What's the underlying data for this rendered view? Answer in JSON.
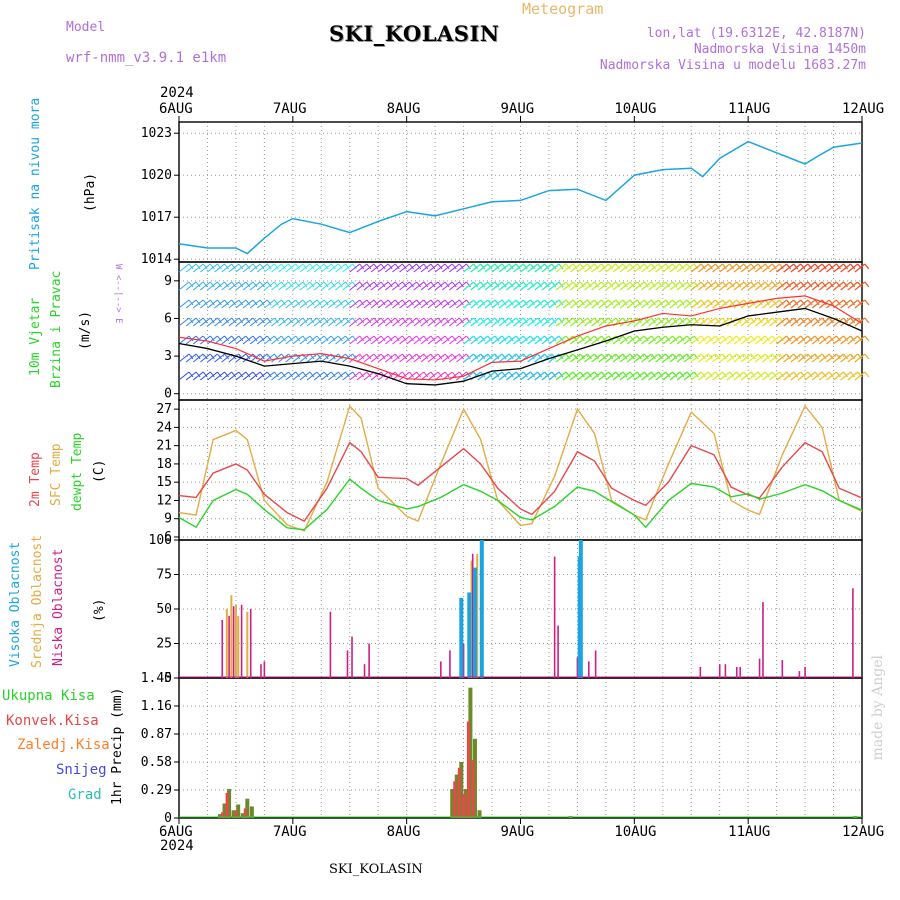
{
  "header": {
    "model_label": "Model",
    "model_name": "wrf-nmm_v3.9.1 e1km",
    "meteogram": "Meteogram",
    "station": "SKI_KOLASIN",
    "lonlat": "lon,lat (19.6312E, 42.8187N)",
    "altitude": "Nadmorska Visina 1450m",
    "model_altitude": "Nadmorska Visina u modelu 1683.27m"
  },
  "footer": {
    "station": "SKI_KOLASIN",
    "credit": "made by Angel"
  },
  "axis": {
    "year": "2024",
    "days": [
      "6AUG",
      "7AUG",
      "8AUG",
      "9AUG",
      "10AUG",
      "11AUG",
      "12AUG"
    ]
  },
  "colors": {
    "pressure": "#1aa5e0",
    "t2m": "#e8484a",
    "sfc": "#e3ac44",
    "dew": "#2ad42a",
    "high": "#1aa5e0",
    "mid": "#e3ac44",
    "low": "#cc1f88",
    "total": "#2ad42a",
    "conv": "#e8484a",
    "frz": "#ff7f27",
    "snow": "#4848e0",
    "grad": "#2abfb0"
  },
  "panels": {
    "pressure": {
      "labels": [
        "Pritisak na nivou mora",
        "(hPa)"
      ]
    },
    "wind": {
      "labels": [
        "10m Vjetar",
        "Brzina i Pravac",
        "(m/s)"
      ],
      "compass": "W <--|--> E"
    },
    "temp": {
      "labels": [
        "2m Temp",
        "SFC Temp",
        "dewpt Temp",
        "(C)"
      ]
    },
    "cloud": {
      "labels": [
        "Visoka Oblacnost",
        "Srednja Oblacnost",
        "Niska Oblacnost",
        "(%)"
      ]
    },
    "precip": {
      "labels": [
        "1hr Precip (mm)"
      ],
      "legend": [
        "Ukupna Kisa",
        "Konvek.Kisa",
        "Zaledj.Kisa",
        "Snijeg",
        "Grad"
      ]
    }
  },
  "chart_data": [
    {
      "type": "line",
      "title": "",
      "ylabel": "Pritisak na nivou mora (hPa)",
      "ylim": [
        1013.8,
        1023.8
      ],
      "yticks": [
        1014,
        1017,
        1020,
        1023
      ],
      "x_unit": "days since 6AUG 00",
      "series": [
        {
          "name": "Pritisak na nivou mora",
          "x": [
            0,
            0.25,
            0.5,
            0.6,
            0.75,
            0.9,
            1.0,
            1.25,
            1.5,
            1.75,
            2.0,
            2.25,
            2.5,
            2.75,
            3.0,
            3.25,
            3.5,
            3.75,
            4.0,
            4.25,
            4.5,
            4.6,
            4.75,
            5.0,
            5.25,
            5.5,
            5.6,
            5.75,
            6.0
          ],
          "y": [
            1015.1,
            1014.8,
            1014.8,
            1014.4,
            1015.5,
            1016.5,
            1016.9,
            1016.5,
            1015.9,
            1016.7,
            1017.4,
            1017.1,
            1017.6,
            1018.1,
            1018.2,
            1018.9,
            1019.0,
            1018.2,
            1020.0,
            1020.4,
            1020.5,
            1019.9,
            1021.2,
            1022.4,
            1021.6,
            1020.8,
            1021.3,
            1022.0,
            1022.3
          ]
        }
      ]
    },
    {
      "type": "line",
      "title": "",
      "ylabel": "10m Vjetar Brzina i Pravac (m/s)",
      "ylim": [
        -0.5,
        10.5
      ],
      "yticks": [
        0,
        3,
        6,
        9
      ],
      "x_unit": "days since 6AUG 00",
      "series": [
        {
          "name": "speed",
          "x": [
            0,
            0.25,
            0.5,
            0.75,
            1.0,
            1.25,
            1.5,
            1.75,
            2.0,
            2.25,
            2.5,
            2.75,
            3.0,
            3.25,
            3.5,
            3.75,
            4.0,
            4.25,
            4.5,
            4.75,
            5.0,
            5.25,
            5.5,
            5.75,
            6.0
          ],
          "y": [
            4.0,
            3.6,
            3.0,
            2.2,
            2.4,
            2.6,
            2.2,
            1.6,
            0.8,
            0.7,
            1.0,
            1.8,
            2.0,
            2.8,
            3.5,
            4.2,
            5.0,
            5.3,
            5.5,
            5.4,
            6.2,
            6.5,
            6.8,
            6.0,
            5.0
          ]
        },
        {
          "name": "gust",
          "x": [
            0,
            0.25,
            0.5,
            0.75,
            1.0,
            1.25,
            1.5,
            1.75,
            2.0,
            2.25,
            2.5,
            2.75,
            3.0,
            3.25,
            3.5,
            3.75,
            4.0,
            4.25,
            4.5,
            4.75,
            5.0,
            5.25,
            5.5,
            5.75,
            6.0
          ],
          "y": [
            4.5,
            4.2,
            3.6,
            2.6,
            3.0,
            3.2,
            2.8,
            2.0,
            1.2,
            1.1,
            1.4,
            2.5,
            2.6,
            3.6,
            4.6,
            5.4,
            5.8,
            6.4,
            6.2,
            6.8,
            7.2,
            7.6,
            7.8,
            7.0,
            5.6
          ]
        }
      ]
    },
    {
      "type": "line",
      "title": "",
      "ylabel": "Temp (C)",
      "ylim": [
        5.5,
        28.5
      ],
      "yticks": [
        6,
        9,
        12,
        15,
        18,
        21,
        24,
        27
      ],
      "x_unit": "days since 6AUG 00",
      "series": [
        {
          "name": "2m Temp",
          "x": [
            0,
            0.15,
            0.3,
            0.5,
            0.6,
            0.75,
            0.95,
            1.1,
            1.3,
            1.5,
            1.6,
            1.75,
            2.0,
            2.1,
            2.3,
            2.5,
            2.65,
            2.8,
            3.0,
            3.1,
            3.3,
            3.5,
            3.65,
            3.8,
            4.0,
            4.1,
            4.3,
            4.5,
            4.7,
            4.85,
            5.0,
            5.1,
            5.3,
            5.5,
            5.65,
            5.8,
            6.0
          ],
          "y": [
            12.8,
            12.5,
            16.5,
            18.0,
            17.0,
            13.0,
            10.0,
            8.6,
            14.0,
            21.5,
            20.0,
            15.8,
            15.6,
            14.5,
            17.5,
            20.5,
            18.0,
            14.0,
            10.6,
            9.7,
            13.5,
            20.0,
            18.5,
            14.0,
            12.0,
            11.2,
            15.0,
            21.0,
            19.5,
            14.2,
            12.9,
            12.4,
            17.5,
            21.5,
            20.0,
            14.0,
            12.4
          ]
        },
        {
          "name": "SFC Temp",
          "x": [
            0,
            0.15,
            0.3,
            0.5,
            0.6,
            0.75,
            0.95,
            1.1,
            1.3,
            1.5,
            1.6,
            1.75,
            2.0,
            2.1,
            2.3,
            2.5,
            2.65,
            2.8,
            3.0,
            3.1,
            3.3,
            3.5,
            3.65,
            3.8,
            4.0,
            4.1,
            4.3,
            4.5,
            4.7,
            4.85,
            5.0,
            5.1,
            5.3,
            5.5,
            5.65,
            5.8,
            6.0
          ],
          "y": [
            10.0,
            9.6,
            22.0,
            23.5,
            22.0,
            12.0,
            8.0,
            7.0,
            15.0,
            27.5,
            25.5,
            14.0,
            9.4,
            8.6,
            18.0,
            27.0,
            22.0,
            12.0,
            7.9,
            8.2,
            16.0,
            27.0,
            23.0,
            12.0,
            9.6,
            8.8,
            18.0,
            26.5,
            23.0,
            12.0,
            10.4,
            9.7,
            19.5,
            27.5,
            24.0,
            12.0,
            10.2
          ]
        },
        {
          "name": "dewpt Temp",
          "x": [
            0,
            0.15,
            0.3,
            0.5,
            0.6,
            0.75,
            0.95,
            1.1,
            1.3,
            1.5,
            1.6,
            1.75,
            2.0,
            2.1,
            2.3,
            2.5,
            2.65,
            2.8,
            3.0,
            3.1,
            3.3,
            3.5,
            3.65,
            3.8,
            4.0,
            4.1,
            4.3,
            4.5,
            4.7,
            4.85,
            5.0,
            5.1,
            5.3,
            5.5,
            5.65,
            5.8,
            6.0
          ],
          "y": [
            9.2,
            7.6,
            12.0,
            13.8,
            13.0,
            10.5,
            7.5,
            7.2,
            10.5,
            15.5,
            14.0,
            12.0,
            10.6,
            11.0,
            12.5,
            14.6,
            13.5,
            12.0,
            9.2,
            8.8,
            11.0,
            14.2,
            13.5,
            11.8,
            9.6,
            7.6,
            12.0,
            14.8,
            14.2,
            12.6,
            13.1,
            12.2,
            13.2,
            14.6,
            13.6,
            12.0,
            10.4
          ]
        }
      ]
    },
    {
      "type": "bar",
      "title": "",
      "ylabel": "Oblacnost (%)",
      "ylim": [
        0,
        100
      ],
      "yticks": [
        0,
        25,
        50,
        75,
        100
      ],
      "x_unit": "days since 6AUG 00",
      "series": [
        {
          "name": "Visoka Oblacnost",
          "x": [
            2.48,
            2.55,
            2.6,
            2.66,
            3.52,
            3.53
          ],
          "y": [
            58,
            62,
            80,
            100,
            88,
            100
          ]
        },
        {
          "name": "Srednja Oblacnost",
          "x": [
            0.42,
            0.46,
            0.5,
            0.52,
            0.6,
            2.57,
            2.62
          ],
          "y": [
            50,
            60,
            53,
            45,
            48,
            85,
            90
          ]
        },
        {
          "name": "Niska Oblacnost",
          "x": [
            0.38,
            0.44,
            0.48,
            0.55,
            0.63,
            0.72,
            0.75,
            1.33,
            1.48,
            1.52,
            1.63,
            1.67,
            2.3,
            2.38,
            2.5,
            2.58,
            2.66,
            3.3,
            3.33,
            3.5,
            3.6,
            3.66,
            4.58,
            4.75,
            4.8,
            4.9,
            4.93,
            5.1,
            5.13,
            5.3,
            5.45,
            5.5,
            5.92
          ],
          "y": [
            42,
            45,
            52,
            53,
            50,
            10,
            12,
            48,
            20,
            30,
            10,
            25,
            12,
            20,
            25,
            90,
            100,
            88,
            38,
            15,
            12,
            20,
            8,
            10,
            10,
            8,
            8,
            14,
            55,
            13,
            5,
            8,
            65
          ]
        }
      ]
    },
    {
      "type": "bar",
      "title": "",
      "ylabel": "1hr Precip (mm)",
      "ylim": [
        0,
        1.45
      ],
      "yticks": [
        0,
        0.29,
        0.58,
        0.87,
        1.16,
        1.45
      ],
      "x_unit": "days since 6AUG 00",
      "series": [
        {
          "name": "Ukupna Kisa",
          "x": [
            0.36,
            0.4,
            0.44,
            0.48,
            0.52,
            0.56,
            0.6,
            0.64,
            2.4,
            2.44,
            2.48,
            2.52,
            2.56,
            2.6,
            2.64,
            3.44,
            5.94
          ],
          "y": [
            0.04,
            0.15,
            0.3,
            0.08,
            0.14,
            0.05,
            0.2,
            0.12,
            0.3,
            0.45,
            0.58,
            0.3,
            1.35,
            0.82,
            0.08,
            0.02,
            0.02
          ]
        },
        {
          "name": "Konvek.Kisa",
          "x": [
            0.4,
            0.44,
            0.52,
            0.6,
            2.44,
            2.48,
            2.52,
            2.56,
            2.6
          ],
          "y": [
            0.06,
            0.26,
            0.08,
            0.1,
            0.38,
            0.52,
            0.25,
            1.0,
            0.6
          ]
        }
      ]
    }
  ]
}
